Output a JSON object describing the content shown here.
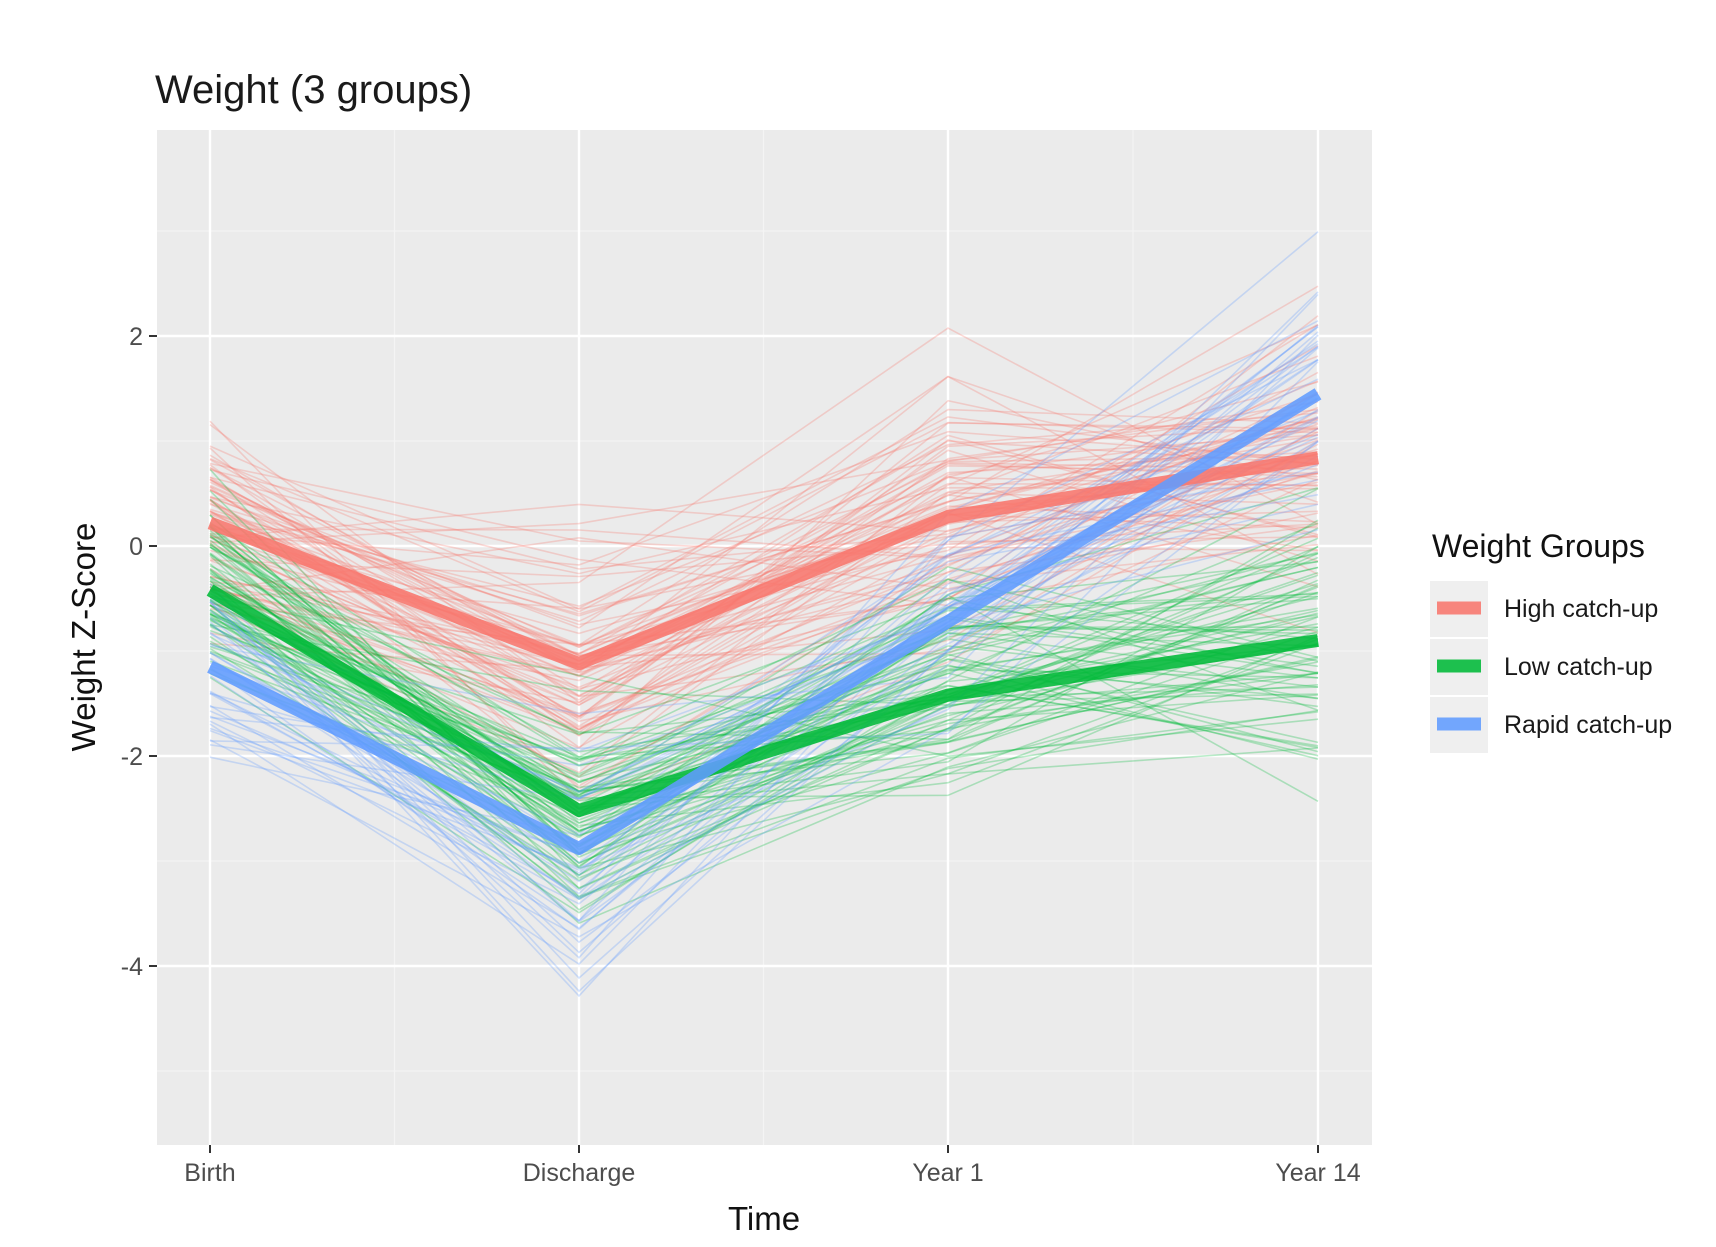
{
  "chart_data": {
    "type": "line",
    "title": "Weight (3 groups)",
    "xlabel": "Time",
    "ylabel": "Weight Z-Score",
    "categories": [
      "Birth",
      "Discharge",
      "Year 1",
      "Year 14"
    ],
    "y_ticks": [
      2,
      0,
      -2,
      -4
    ],
    "y_tick_labels": [
      "2",
      "0",
      "-2",
      "-4"
    ],
    "ylim": [
      -5.7,
      4.0
    ],
    "grid": true,
    "legend": {
      "title": "Weight Groups",
      "position": "right",
      "entries": [
        "High catch-up",
        "Low catch-up",
        "Rapid catch-up"
      ]
    },
    "series": [
      {
        "name": "High catch-up",
        "color": "#F8766D",
        "values": [
          0.22,
          -1.12,
          0.28,
          0.84
        ]
      },
      {
        "name": "Low catch-up",
        "color": "#00BA38",
        "values": [
          -0.42,
          -2.52,
          -1.42,
          -0.9
        ]
      },
      {
        "name": "Rapid catch-up",
        "color": "#619CFF",
        "values": [
          -1.15,
          -2.88,
          -0.72,
          1.45
        ]
      }
    ],
    "individual_trajectories": [
      {
        "group": "High catch-up",
        "count": 80,
        "spread": [
          0.55,
          0.55,
          0.65,
          0.65
        ]
      },
      {
        "group": "Low catch-up",
        "count": 80,
        "spread": [
          0.45,
          0.5,
          0.6,
          0.6
        ]
      },
      {
        "group": "Rapid catch-up",
        "count": 40,
        "spread": [
          0.4,
          0.6,
          0.55,
          0.6
        ]
      }
    ]
  }
}
